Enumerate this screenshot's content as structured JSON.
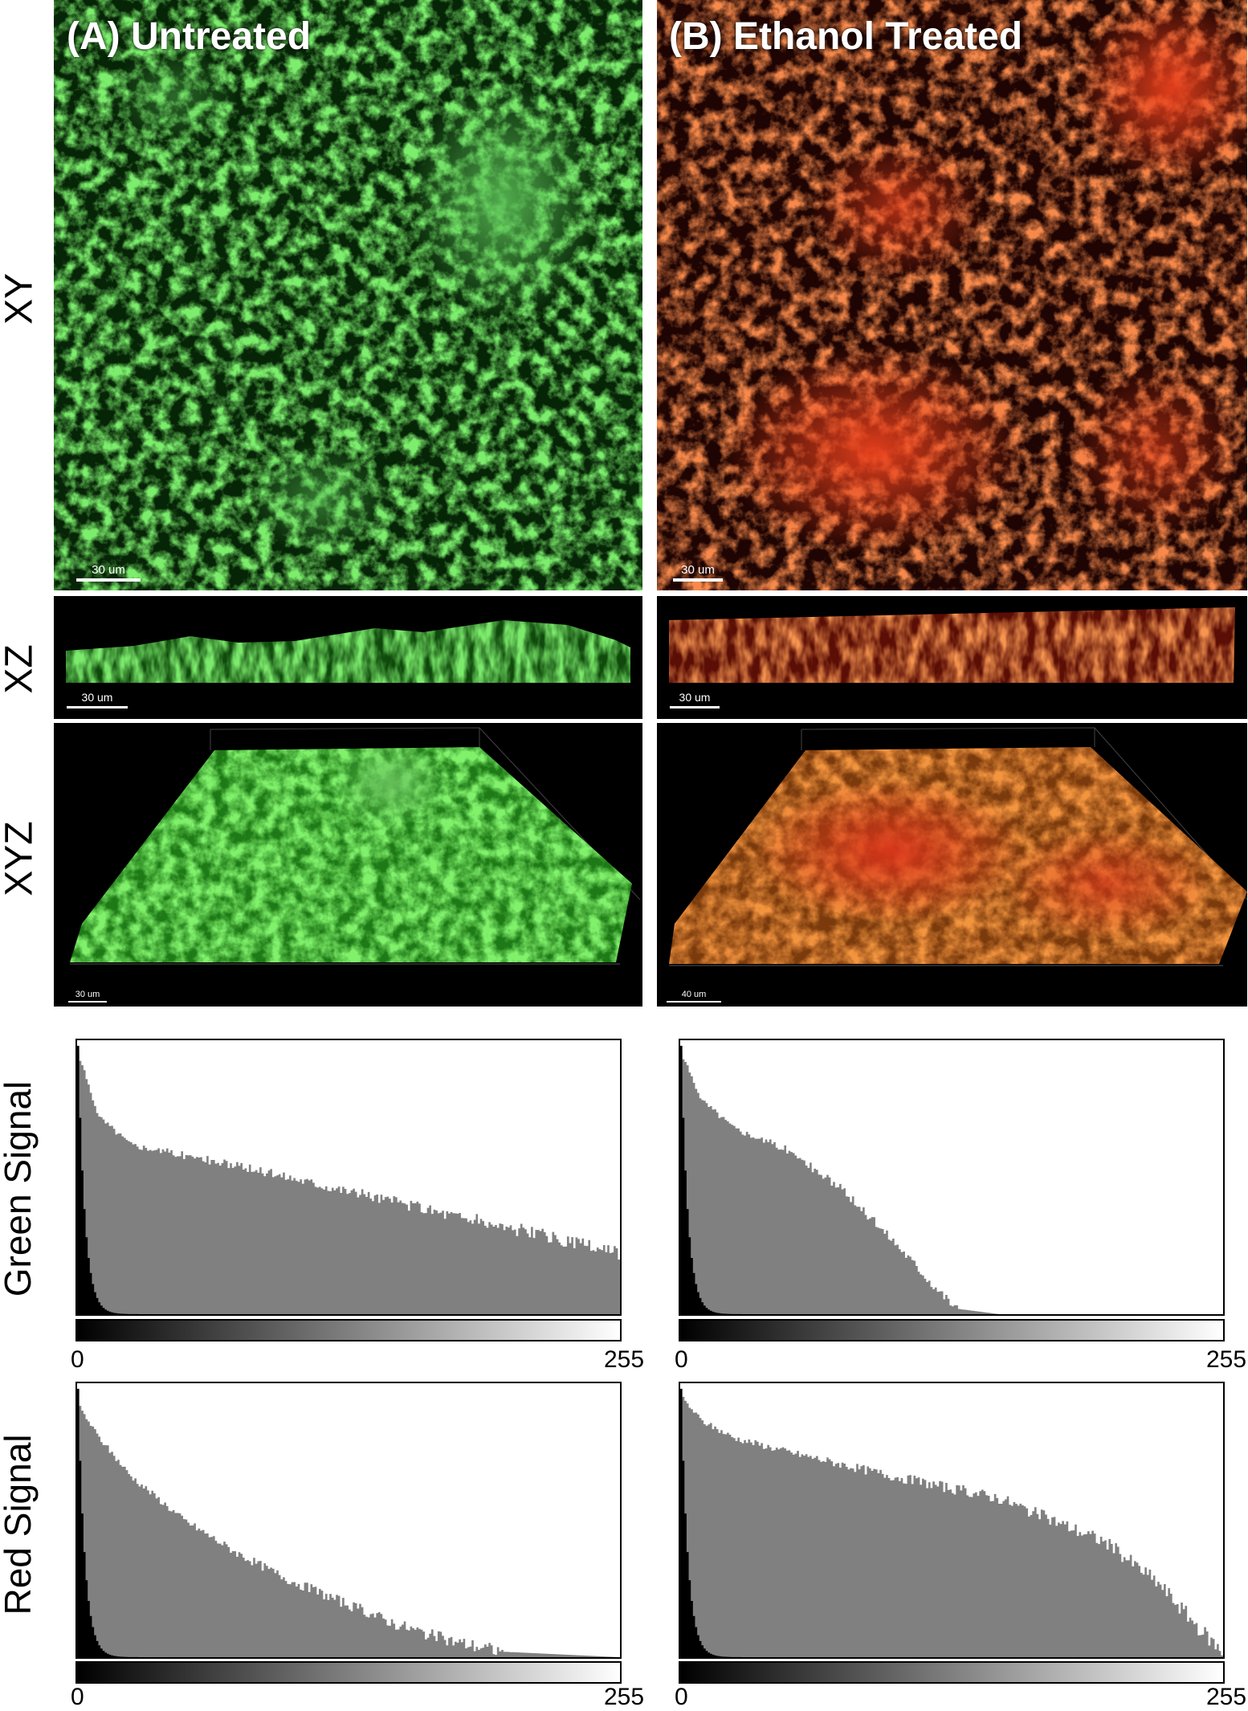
{
  "colors": {
    "green": "#35d62a",
    "red": "#e23214",
    "hist_fill": "#808080",
    "hist_dark": "#000000"
  },
  "columns": [
    {
      "title": "(A) Untreated",
      "xy_scale": "30 um",
      "xz_scale": "30 um",
      "xyz_scale": "30 um",
      "tint": "green"
    },
    {
      "title": "(B) Ethanol Treated",
      "xy_scale": "30 um",
      "xz_scale": "30 um",
      "xyz_scale": "40 um",
      "tint": "red"
    }
  ],
  "row_labels": {
    "xy": "XY",
    "xz": "XZ",
    "xyz": "XYZ",
    "green": "Green Signal",
    "red": "Red Signal"
  },
  "histograms": {
    "axis_min": "0",
    "axis_max": "255",
    "green_A": {
      "levels": [
        0,
        10,
        25,
        50,
        100,
        150,
        200,
        255
      ],
      "relative_count": [
        0.95,
        0.72,
        0.62,
        0.58,
        0.5,
        0.41,
        0.32,
        0.22
      ]
    },
    "green_B": {
      "levels": [
        0,
        10,
        25,
        50,
        75,
        100,
        120,
        130,
        150,
        255
      ],
      "relative_count": [
        0.95,
        0.78,
        0.68,
        0.6,
        0.46,
        0.27,
        0.1,
        0.02,
        0.0,
        0.0
      ]
    },
    "red_A": {
      "levels": [
        0,
        10,
        25,
        50,
        75,
        100,
        125,
        150,
        175,
        200,
        255
      ],
      "relative_count": [
        0.92,
        0.8,
        0.66,
        0.5,
        0.38,
        0.28,
        0.2,
        0.12,
        0.06,
        0.02,
        0.0
      ]
    },
    "red_B": {
      "levels": [
        0,
        10,
        25,
        50,
        100,
        150,
        200,
        225,
        245,
        255
      ],
      "relative_count": [
        0.95,
        0.86,
        0.8,
        0.75,
        0.66,
        0.58,
        0.42,
        0.27,
        0.1,
        0.02
      ]
    }
  }
}
